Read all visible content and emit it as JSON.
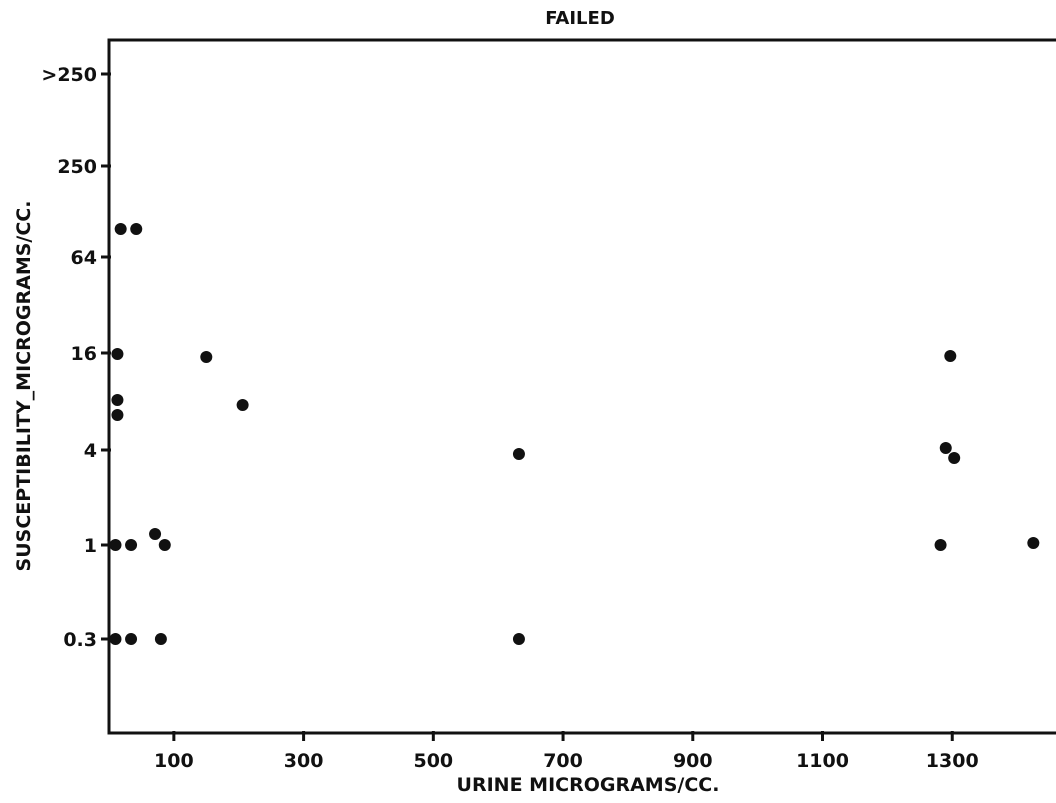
{
  "chart_data": {
    "type": "scatter",
    "title": "FAILED",
    "xlabel": "URINE MICROGRAMS/CC.",
    "ylabel": "SUSCEPTIBILITY_MICROGRAMS/CC.",
    "x_ticks": [
      100,
      300,
      500,
      700,
      900,
      1100,
      1300
    ],
    "x_tick_labels": [
      "100",
      "300",
      "500",
      "700",
      "900",
      "1100",
      "1300"
    ],
    "xlim": [
      0,
      1480
    ],
    "y_ticks": [
      0.3,
      1,
      4,
      16,
      64,
      250,
      ">250"
    ],
    "y_tick_labels": [
      "0.3",
      "1",
      "4",
      "16",
      "64",
      "250",
      ">250"
    ],
    "y_scale": "ordinal (categorical levels)",
    "grid": false,
    "marker_color": "#111111",
    "points": [
      {
        "x": 18,
        "y": 128
      },
      {
        "x": 42,
        "y": 128
      },
      {
        "x": 13,
        "y": 16
      },
      {
        "x": 150,
        "y": 16
      },
      {
        "x": 1297,
        "y": 16
      },
      {
        "x": 13,
        "y": 8
      },
      {
        "x": 13,
        "y": 8
      },
      {
        "x": 206,
        "y": 8
      },
      {
        "x": 632,
        "y": 4
      },
      {
        "x": 1290,
        "y": 4
      },
      {
        "x": 1303,
        "y": 4
      },
      {
        "x": 71,
        "y": 1
      },
      {
        "x": 10,
        "y": 1
      },
      {
        "x": 34,
        "y": 1
      },
      {
        "x": 86,
        "y": 1
      },
      {
        "x": 1282,
        "y": 1
      },
      {
        "x": 1425,
        "y": 1
      },
      {
        "x": 10,
        "y": 0.3
      },
      {
        "x": 34,
        "y": 0.3
      },
      {
        "x": 80,
        "y": 0.3
      },
      {
        "x": 632,
        "y": 0.3
      }
    ]
  }
}
